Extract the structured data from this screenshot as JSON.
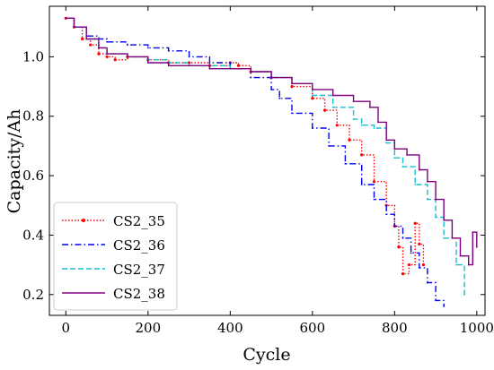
{
  "chart_data": {
    "type": "line",
    "title": "",
    "xlabel": "Cycle",
    "ylabel": "Capacity/Ah",
    "xlim": [
      -40,
      1020
    ],
    "ylim": [
      0.13,
      1.17
    ],
    "xticks": [
      0,
      200,
      400,
      600,
      800,
      1000
    ],
    "yticks": [
      0.2,
      0.4,
      0.6,
      0.8,
      1.0
    ],
    "xtick_labels": [
      "0",
      "200",
      "400",
      "600",
      "800",
      "1000"
    ],
    "ytick_labels": [
      "0.2",
      "0.4",
      "0.6",
      "0.8",
      "1.0"
    ],
    "grid": false,
    "legend_position": "lower-left",
    "series": [
      {
        "name": "CS2_35",
        "color": "#ff0000",
        "style": "dotted-marker",
        "x": [
          0,
          20,
          40,
          60,
          80,
          100,
          120,
          150,
          200,
          250,
          300,
          350,
          400,
          420,
          450,
          500,
          550,
          600,
          630,
          660,
          690,
          720,
          750,
          780,
          800,
          810,
          820,
          835,
          850,
          860,
          870
        ],
        "y": [
          1.13,
          1.1,
          1.06,
          1.04,
          1.01,
          1.0,
          0.99,
          1.0,
          0.99,
          0.98,
          0.98,
          0.97,
          0.98,
          0.97,
          0.95,
          0.93,
          0.9,
          0.86,
          0.82,
          0.77,
          0.72,
          0.67,
          0.58,
          0.5,
          0.43,
          0.36,
          0.27,
          0.3,
          0.44,
          0.37,
          0.3
        ]
      },
      {
        "name": "CS2_36",
        "color": "#0000ee",
        "style": "dashdot",
        "x": [
          0,
          20,
          50,
          80,
          100,
          150,
          200,
          250,
          300,
          350,
          400,
          450,
          500,
          520,
          550,
          600,
          640,
          680,
          720,
          750,
          780,
          800,
          820,
          840,
          860,
          880,
          900,
          920
        ],
        "y": [
          1.13,
          1.1,
          1.07,
          1.06,
          1.05,
          1.04,
          1.03,
          1.02,
          1.0,
          0.98,
          0.96,
          0.93,
          0.89,
          0.86,
          0.81,
          0.76,
          0.7,
          0.64,
          0.57,
          0.52,
          0.47,
          0.43,
          0.39,
          0.34,
          0.29,
          0.24,
          0.18,
          0.16
        ]
      },
      {
        "name": "CS2_37",
        "color": "#17becf",
        "style": "dashed",
        "x": [
          0,
          20,
          50,
          80,
          100,
          150,
          200,
          250,
          300,
          350,
          400,
          450,
          500,
          550,
          600,
          650,
          700,
          720,
          750,
          780,
          800,
          820,
          850,
          880,
          900,
          920,
          950,
          970
        ],
        "y": [
          1.13,
          1.1,
          1.06,
          1.03,
          1.01,
          1.0,
          0.99,
          0.98,
          0.97,
          0.97,
          0.96,
          0.95,
          0.93,
          0.91,
          0.87,
          0.83,
          0.79,
          0.77,
          0.76,
          0.71,
          0.66,
          0.63,
          0.57,
          0.52,
          0.46,
          0.39,
          0.3,
          0.2
        ]
      },
      {
        "name": "CS2_38",
        "color": "#800080",
        "style": "solid",
        "x": [
          0,
          20,
          50,
          80,
          100,
          150,
          200,
          250,
          300,
          350,
          400,
          450,
          500,
          550,
          600,
          650,
          700,
          740,
          760,
          780,
          800,
          830,
          860,
          880,
          900,
          920,
          940,
          960,
          980,
          990,
          1000
        ],
        "y": [
          1.13,
          1.1,
          1.06,
          1.03,
          1.01,
          1.0,
          0.98,
          0.97,
          0.97,
          0.96,
          0.96,
          0.95,
          0.93,
          0.91,
          0.89,
          0.87,
          0.85,
          0.83,
          0.78,
          0.72,
          0.69,
          0.67,
          0.62,
          0.58,
          0.52,
          0.45,
          0.39,
          0.33,
          0.3,
          0.41,
          0.36
        ]
      }
    ]
  }
}
